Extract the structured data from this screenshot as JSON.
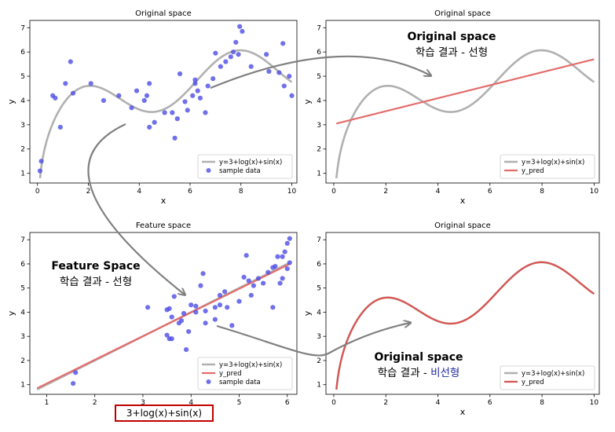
{
  "chart_data": [
    {
      "type": "scatter",
      "title": "Original space",
      "xlabel": "x",
      "ylabel": "y",
      "xlim": [
        -0.3,
        10.2
      ],
      "ylim": [
        0.6,
        7.3
      ],
      "xticks": [
        0,
        2,
        4,
        6,
        8,
        10
      ],
      "yticks": [
        1,
        2,
        3,
        4,
        5,
        6,
        7
      ],
      "true_curve": {
        "name": "y=3+log(x)+sin(x)",
        "color": "#b0b0b0"
      },
      "series": [
        {
          "name": "sample data",
          "kind": "scatter",
          "color": "#5050e6",
          "points": [
            [
              0.1,
              1.1
            ],
            [
              0.15,
              1.5
            ],
            [
              0.6,
              4.2
            ],
            [
              0.7,
              4.1
            ],
            [
              0.9,
              2.9
            ],
            [
              1.1,
              4.7
            ],
            [
              1.3,
              5.6
            ],
            [
              1.4,
              4.3
            ],
            [
              2.1,
              4.7
            ],
            [
              2.6,
              4.0
            ],
            [
              3.2,
              4.2
            ],
            [
              3.7,
              3.7
            ],
            [
              3.9,
              4.4
            ],
            [
              4.2,
              4.0
            ],
            [
              4.3,
              4.2
            ],
            [
              4.4,
              4.7
            ],
            [
              4.4,
              2.9
            ],
            [
              4.6,
              3.1
            ],
            [
              5.0,
              3.5
            ],
            [
              5.3,
              3.5
            ],
            [
              5.4,
              2.45
            ],
            [
              5.5,
              3.25
            ],
            [
              5.6,
              5.1
            ],
            [
              5.8,
              3.95
            ],
            [
              5.9,
              3.6
            ],
            [
              6.1,
              4.2
            ],
            [
              6.2,
              4.7
            ],
            [
              6.2,
              4.85
            ],
            [
              6.3,
              4.4
            ],
            [
              6.4,
              4.1
            ],
            [
              6.6,
              3.5
            ],
            [
              6.7,
              4.6
            ],
            [
              6.9,
              4.9
            ],
            [
              7.0,
              5.95
            ],
            [
              7.2,
              5.4
            ],
            [
              7.4,
              5.6
            ],
            [
              7.6,
              5.8
            ],
            [
              7.7,
              6.0
            ],
            [
              7.8,
              6.4
            ],
            [
              7.9,
              5.9
            ],
            [
              7.95,
              7.05
            ],
            [
              8.05,
              6.85
            ],
            [
              8.4,
              5.4
            ],
            [
              9.0,
              5.9
            ],
            [
              9.1,
              5.2
            ],
            [
              9.5,
              5.15
            ],
            [
              9.65,
              6.35
            ],
            [
              9.7,
              4.6
            ],
            [
              9.9,
              5.0
            ],
            [
              10.0,
              4.2
            ]
          ]
        }
      ],
      "legend": {
        "position": "lower-right",
        "entries": [
          "y=3+log(x)+sin(x)",
          "sample data"
        ]
      }
    },
    {
      "type": "line",
      "title": "Original space",
      "xlabel": "x",
      "ylabel": "y",
      "xlim": [
        -0.3,
        10.2
      ],
      "ylim": [
        0.6,
        7.3
      ],
      "xticks": [
        0,
        2,
        4,
        6,
        8,
        10
      ],
      "yticks": [
        1,
        2,
        3,
        4,
        5,
        6,
        7
      ],
      "true_curve": {
        "name": "y=3+log(x)+sin(x)",
        "color": "#b0b0b0"
      },
      "series": [
        {
          "name": "y_pred",
          "kind": "line",
          "color": "#e36c6c",
          "x": [
            0.1,
            10.0
          ],
          "y": [
            3.05,
            5.7
          ]
        }
      ],
      "annotation": {
        "title": "Original space",
        "subtitle": "학습 결과 - 선형"
      },
      "legend": {
        "position": "lower-right",
        "entries": [
          "y=3+log(x)+sin(x)",
          "y_pred"
        ]
      }
    },
    {
      "type": "scatter",
      "title": "Feature space",
      "xlabel": "3+log(x)+sin(x)",
      "ylabel": "y",
      "xlim": [
        0.65,
        6.2
      ],
      "ylim": [
        0.6,
        7.3
      ],
      "xticks": [
        1,
        2,
        3,
        4,
        5,
        6
      ],
      "yticks": [
        1,
        2,
        3,
        4,
        5,
        6,
        7
      ],
      "true_curve": {
        "name": "y=3+log(x)+sin(x)",
        "color": "#b0b0b0",
        "x": [
          0.8,
          6.05
        ],
        "y": [
          0.8,
          6.05
        ]
      },
      "series": [
        {
          "name": "y_pred",
          "kind": "line",
          "color": "#e36c6c",
          "x": [
            0.8,
            6.05
          ],
          "y": [
            0.85,
            6.0
          ]
        },
        {
          "name": "sample data",
          "kind": "scatter",
          "color": "#5050e6",
          "points": [
            [
              1.55,
              1.05
            ],
            [
              1.6,
              1.5
            ],
            [
              3.1,
              4.2
            ],
            [
              3.55,
              2.9
            ],
            [
              3.5,
              3.05
            ],
            [
              3.6,
              2.9
            ],
            [
              3.5,
              4.1
            ],
            [
              3.55,
              4.15
            ],
            [
              3.6,
              3.8
            ],
            [
              3.65,
              4.65
            ],
            [
              3.75,
              3.55
            ],
            [
              3.8,
              3.65
            ],
            [
              3.85,
              3.95
            ],
            [
              3.9,
              2.45
            ],
            [
              3.95,
              3.2
            ],
            [
              4.0,
              4.3
            ],
            [
              4.1,
              4.25
            ],
            [
              4.1,
              4.0
            ],
            [
              4.2,
              5.1
            ],
            [
              4.25,
              5.6
            ],
            [
              4.3,
              3.55
            ],
            [
              4.3,
              4.05
            ],
            [
              4.5,
              3.7
            ],
            [
              4.5,
              4.2
            ],
            [
              4.6,
              4.7
            ],
            [
              4.6,
              4.3
            ],
            [
              4.7,
              4.85
            ],
            [
              4.75,
              4.2
            ],
            [
              4.85,
              3.45
            ],
            [
              5.0,
              4.45
            ],
            [
              5.1,
              5.45
            ],
            [
              5.15,
              6.35
            ],
            [
              5.2,
              5.3
            ],
            [
              5.25,
              4.7
            ],
            [
              5.3,
              5.1
            ],
            [
              5.4,
              5.4
            ],
            [
              5.5,
              5.2
            ],
            [
              5.6,
              5.65
            ],
            [
              5.7,
              5.85
            ],
            [
              5.75,
              5.9
            ],
            [
              5.8,
              6.3
            ],
            [
              5.9,
              6.3
            ],
            [
              5.95,
              6.5
            ],
            [
              6.0,
              6.85
            ],
            [
              6.05,
              7.05
            ],
            [
              6.05,
              6.05
            ],
            [
              5.9,
              5.4
            ],
            [
              5.85,
              5.2
            ],
            [
              5.7,
              4.2
            ],
            [
              6.0,
              5.8
            ]
          ]
        }
      ],
      "annotation": {
        "title": "Feature Space",
        "subtitle": "학습 결과 - 선형"
      },
      "legend": {
        "position": "lower-right",
        "entries": [
          "y=3+log(x)+sin(x)",
          "y_pred",
          "sample data"
        ]
      }
    },
    {
      "type": "line",
      "title": "Original space",
      "xlabel": "x",
      "ylabel": "y",
      "xlim": [
        -0.3,
        10.2
      ],
      "ylim": [
        0.6,
        7.3
      ],
      "xticks": [
        0,
        2,
        4,
        6,
        8,
        10
      ],
      "yticks": [
        1,
        2,
        3,
        4,
        5,
        6,
        7
      ],
      "true_curve": {
        "name": "y=3+log(x)+sin(x)",
        "color": "#b0b0b0"
      },
      "series": [
        {
          "name": "y_pred",
          "kind": "curve",
          "color": "#d9534f",
          "formula": "3+log(x)+sin(x)"
        }
      ],
      "annotation": {
        "title": "Original space",
        "subtitle_prefix": "학습 결과 - ",
        "subtitle_em": "비선형"
      },
      "legend": {
        "position": "lower-right",
        "entries": [
          "y=3+log(x)+sin(x)",
          "y_pred"
        ]
      }
    }
  ],
  "feature_axis_box": {
    "label": "3+log(x)+sin(x)",
    "border_color": "#c00000"
  },
  "colors": {
    "scatter": "#5050e6",
    "true_curve": "#b0b0b0",
    "prediction": "#e36c6c",
    "arrow": "#808080",
    "emphasis": "#1f2a9e"
  }
}
